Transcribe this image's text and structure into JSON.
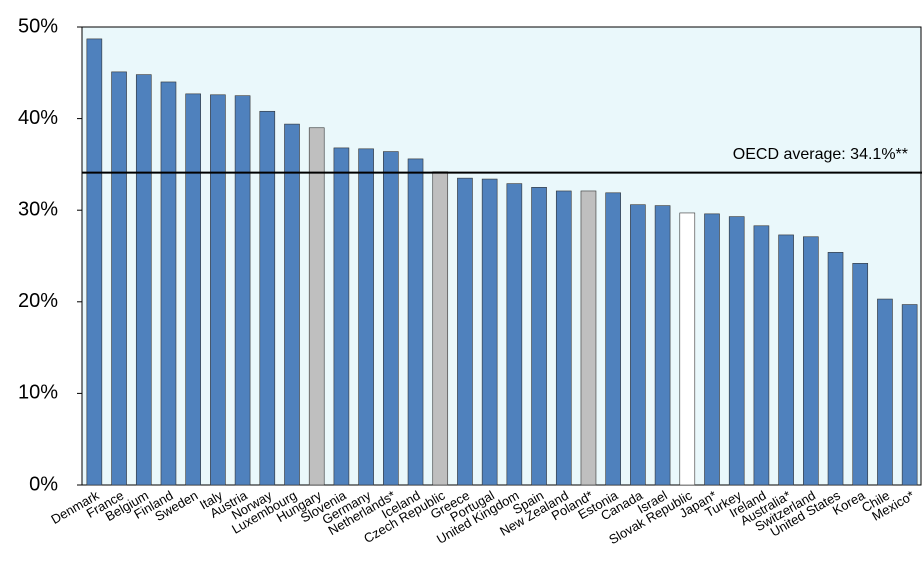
{
  "chart_data": {
    "type": "bar",
    "categories": [
      "Denmark",
      "France",
      "Belgium",
      "Finland",
      "Sweden",
      "Italy",
      "Austria",
      "Norway",
      "Luxembourg",
      "Hungary",
      "Slovenia",
      "Germany",
      "Netherlands*",
      "Iceland",
      "Czech Republic",
      "Greece",
      "Portugal",
      "United Kingdom",
      "Spain",
      "New Zealand",
      "Poland*",
      "Estonia",
      "Canada",
      "Israel",
      "Slovak Republic",
      "Japan*",
      "Turkey",
      "Ireland",
      "Australia*",
      "Switzerland",
      "United States",
      "Korea",
      "Chile",
      "Mexico*"
    ],
    "values": [
      48.7,
      45.1,
      44.8,
      44.0,
      42.7,
      42.6,
      42.5,
      40.8,
      39.4,
      39.0,
      36.8,
      36.7,
      36.4,
      35.6,
      34.2,
      33.5,
      33.4,
      32.9,
      32.5,
      32.1,
      32.1,
      31.9,
      30.6,
      30.5,
      29.7,
      29.6,
      29.3,
      28.3,
      27.3,
      27.1,
      25.4,
      24.2,
      20.3,
      19.7
    ],
    "colors": [
      "#4f81bd",
      "#4f81bd",
      "#4f81bd",
      "#4f81bd",
      "#4f81bd",
      "#4f81bd",
      "#4f81bd",
      "#4f81bd",
      "#4f81bd",
      "#bfbfbf",
      "#4f81bd",
      "#4f81bd",
      "#4f81bd",
      "#4f81bd",
      "#bfbfbf",
      "#4f81bd",
      "#4f81bd",
      "#4f81bd",
      "#4f81bd",
      "#4f81bd",
      "#bfbfbf",
      "#4f81bd",
      "#4f81bd",
      "#4f81bd",
      "#ffffff",
      "#4f81bd",
      "#4f81bd",
      "#4f81bd",
      "#4f81bd",
      "#4f81bd",
      "#4f81bd",
      "#4f81bd",
      "#4f81bd",
      "#4f81bd"
    ],
    "ylim": [
      0,
      50
    ],
    "yticks": [
      {
        "value": 0,
        "label": "0%"
      },
      {
        "value": 10,
        "label": "10%"
      },
      {
        "value": 20,
        "label": "20%"
      },
      {
        "value": 30,
        "label": "30%"
      },
      {
        "value": 40,
        "label": "40%"
      },
      {
        "value": 50,
        "label": "50%"
      }
    ],
    "reference_line": {
      "value": 34.1,
      "label": "OECD average: 34.1%**"
    }
  }
}
